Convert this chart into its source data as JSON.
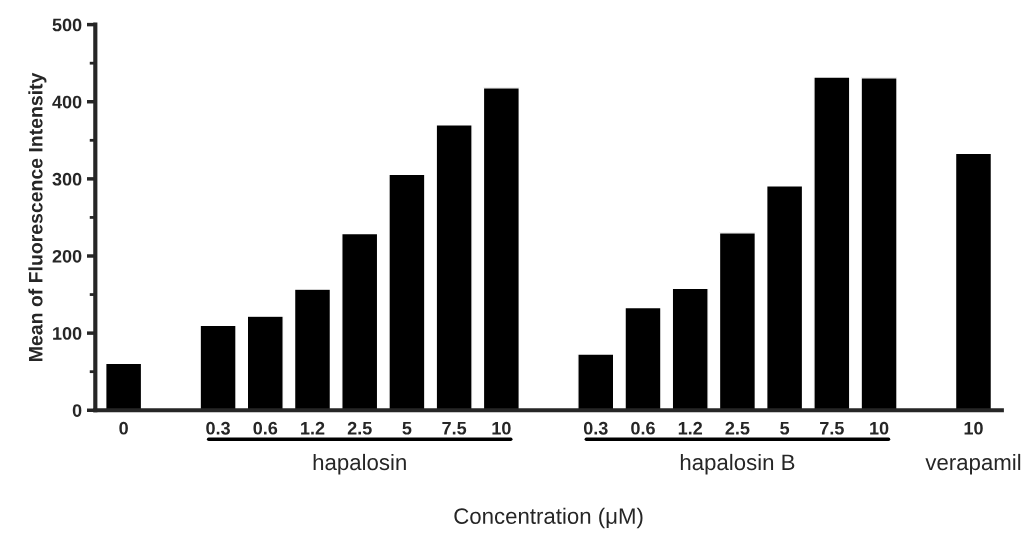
{
  "chart_data": {
    "type": "bar",
    "xlabel": "Concentration (μM)",
    "ylabel": "Mean of Fluorescence Intensity",
    "categories": [
      "0",
      null,
      "0.3",
      "0.6",
      "1.2",
      "2.5",
      "5",
      "7.5",
      "10",
      null,
      "0.3",
      "0.6",
      "1.2",
      "2.5",
      "5",
      "7.5",
      "10",
      null,
      "10"
    ],
    "values": [
      61,
      null,
      110,
      122,
      157,
      229,
      306,
      370,
      418,
      null,
      73,
      133,
      158,
      230,
      291,
      432,
      431,
      null,
      333
    ],
    "color": "#000000",
    "ylim": [
      0,
      500
    ],
    "yticks": [
      0,
      100,
      200,
      300,
      400,
      500
    ],
    "annotations": [
      "hapalosin",
      "hapalosin B",
      "verapamil"
    ],
    "grid": false,
    "legend": false
  }
}
